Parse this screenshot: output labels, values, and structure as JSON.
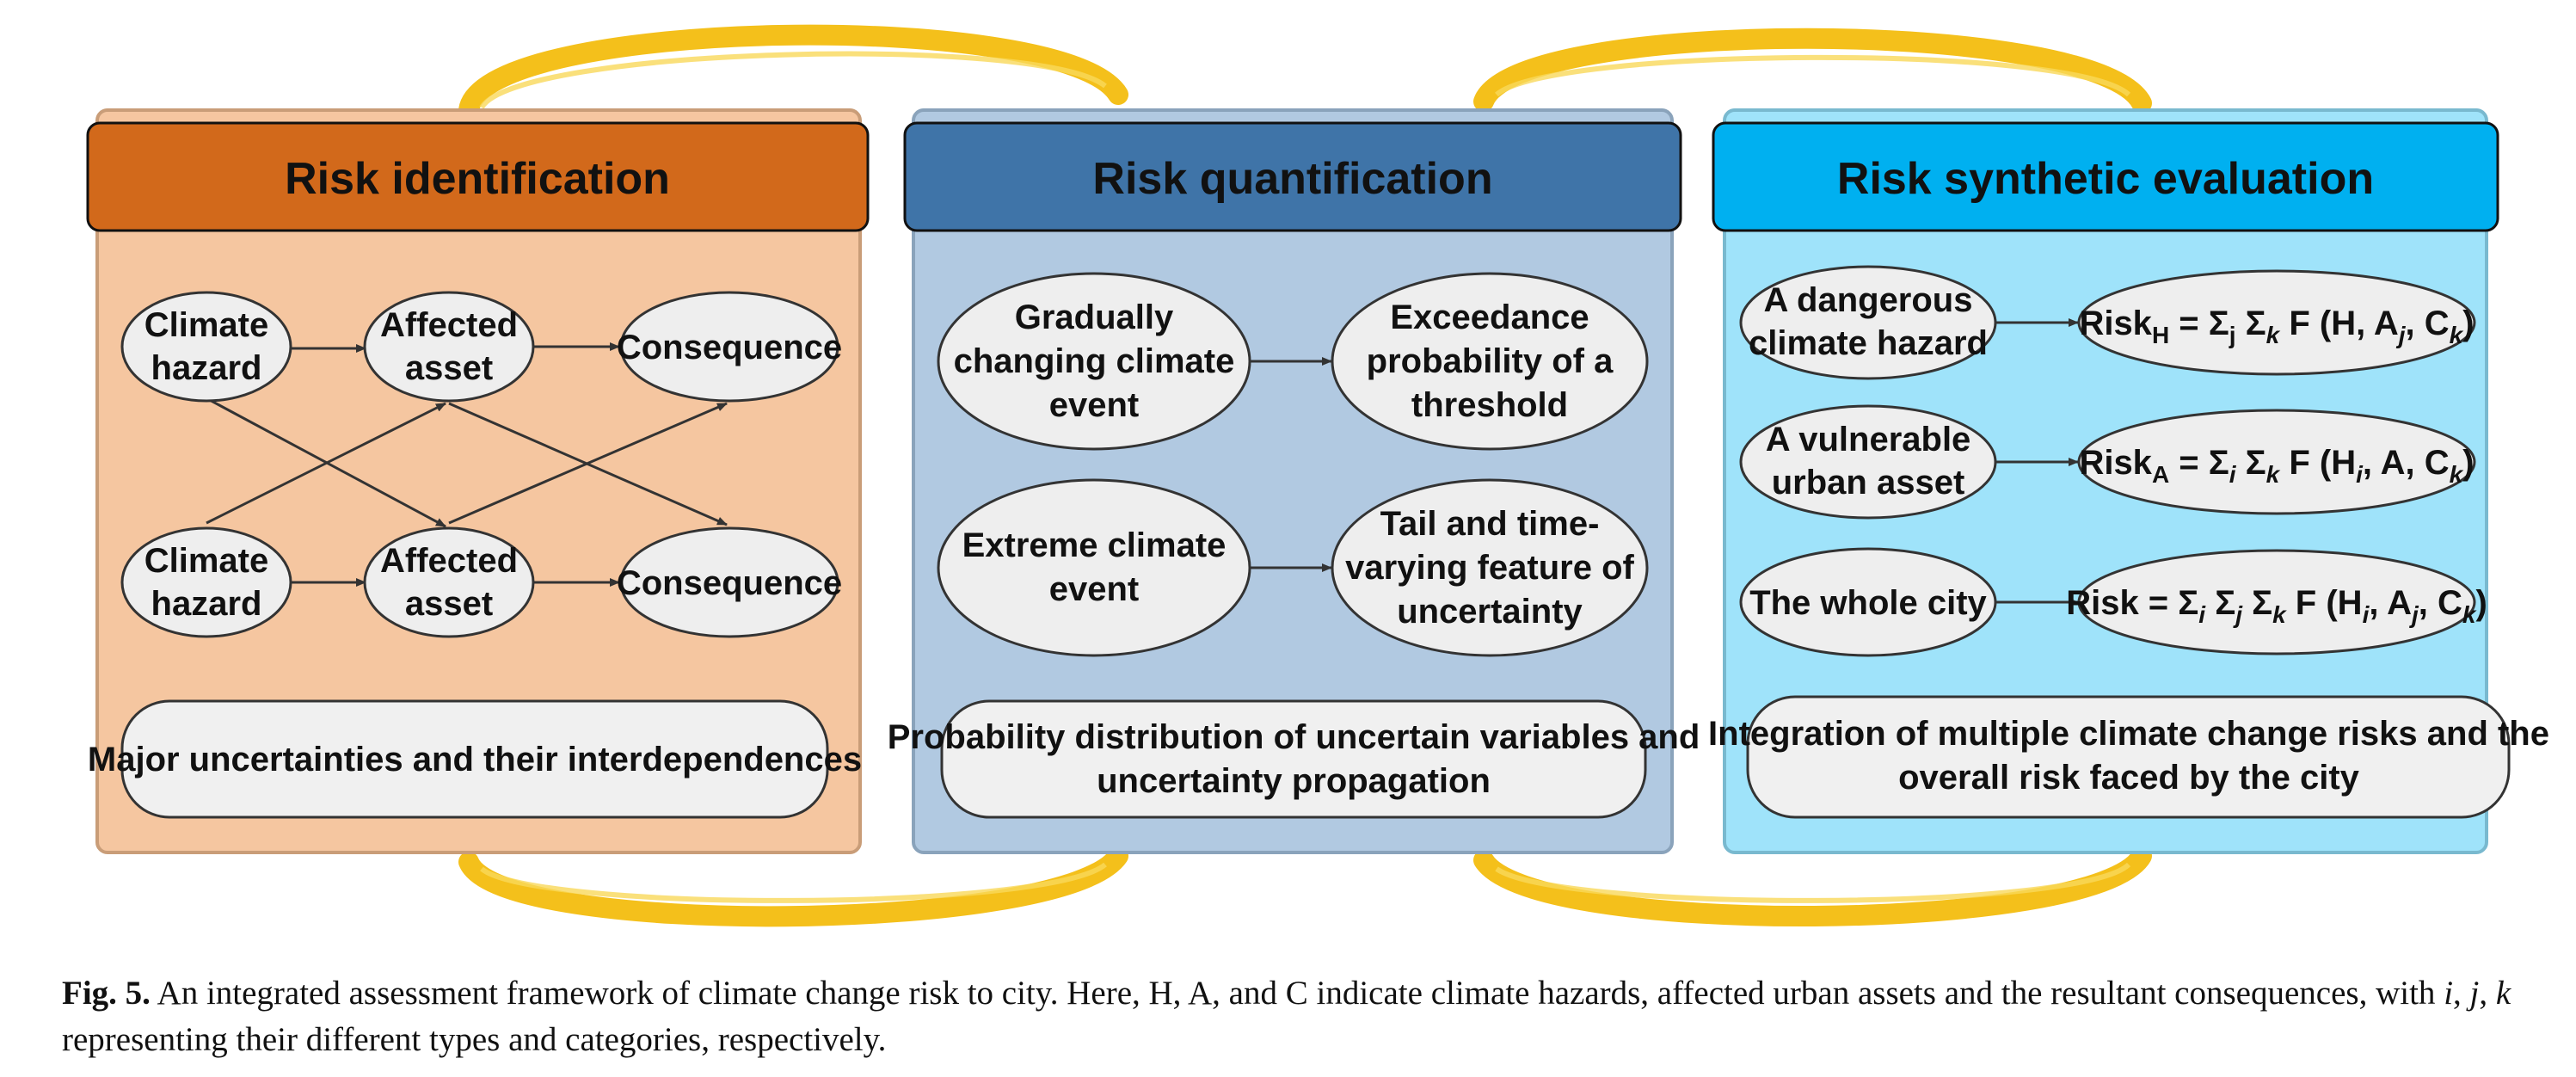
{
  "panels": [
    {
      "title": "Risk identification",
      "colors": {
        "header": "#d2691b",
        "body": "#f5c6a0",
        "border": "#c99d78"
      },
      "nodes": [
        [
          "Climate",
          "hazard"
        ],
        [
          "Affected",
          "asset"
        ],
        [
          "Consequence"
        ],
        [
          "Climate",
          "hazard"
        ],
        [
          "Affected",
          "asset"
        ],
        [
          "Consequence"
        ]
      ],
      "summary": [
        "Major uncertainties and their interdependences"
      ]
    },
    {
      "title": "Risk quantification",
      "colors": {
        "header": "#3f74a8",
        "body": "#b1c9e1",
        "border": "#8aa3bb"
      },
      "nodes": [
        [
          "Gradually",
          "changing climate",
          "event"
        ],
        [
          "Exceedance",
          "probability of a",
          "threshold"
        ],
        [
          "Extreme climate",
          "event"
        ],
        [
          "Tail and time-",
          "varying feature of",
          "uncertainty"
        ]
      ],
      "summary": [
        "Probability distribution of uncertain variables and",
        "uncertainty propagation"
      ]
    },
    {
      "title": "Risk synthetic evaluation",
      "colors": {
        "header": "#00b0f0",
        "body": "#9fe3fa",
        "border": "#79b9cf"
      },
      "nodes": [
        [
          "A dangerous",
          "climate hazard"
        ],
        [
          "A vulnerable",
          "urban asset"
        ],
        [
          "The whole city"
        ]
      ],
      "formulas": [
        "Risk_H = Σ_j Σ_k F (H, A_j, C_k)",
        "Risk_A = Σ_i Σ_k F (H_i, A, C_k)",
        "Risk = Σ_i Σ_j Σ_k F (H_i, A_j, C_k)"
      ],
      "summary": [
        "Integration of multiple climate change risks and the",
        "overall risk faced by the city"
      ]
    }
  ],
  "colors": {
    "loop": "#f4c01b",
    "node_fill": "#eeeeee",
    "summary_fill": "#f0f0f0",
    "arrow": "#333333"
  },
  "caption": {
    "figure_label": "Fig. 5.",
    "text": "An integrated assessment framework of climate change risk to city. Here, H, A, and C indicate climate hazards, affected urban assets and the resultant consequences, with i, j, k representing their different types and categories, respectively."
  }
}
